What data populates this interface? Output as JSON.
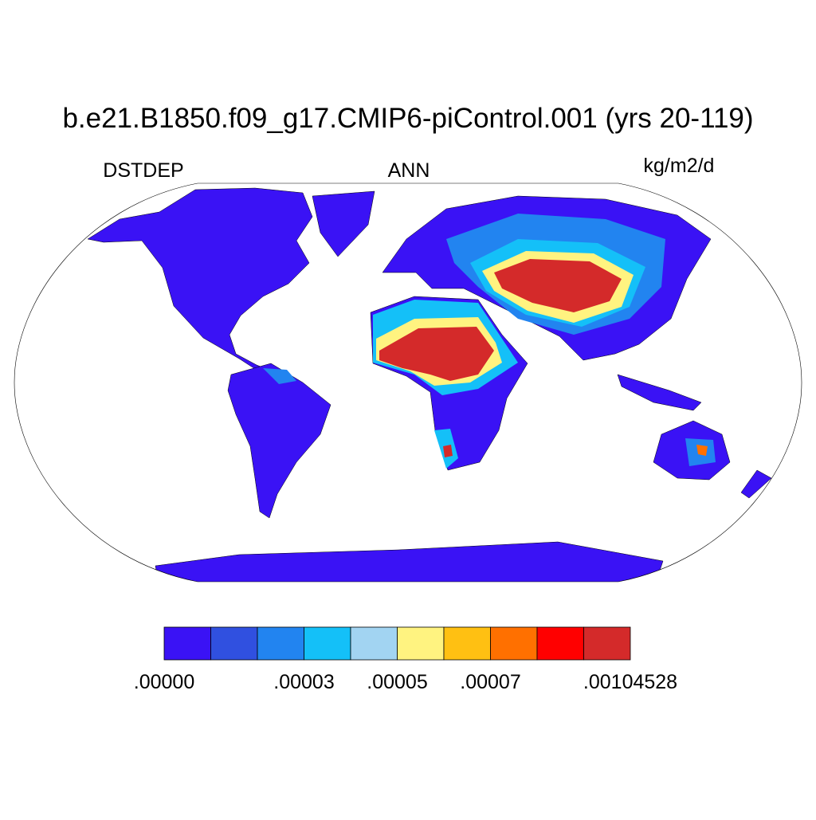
{
  "title": "b.e21.B1850.f09_g17.CMIP6-piControl.001 (yrs 20-119)",
  "left_label": "DSTDEP",
  "center_label": "ANN",
  "units": "kg/m2/d",
  "colorbar": {
    "colors": [
      "#3a12f5",
      "#3050e0",
      "#2284f0",
      "#14c0f8",
      "#a2d4f2",
      "#fff380",
      "#ffc012",
      "#ff7000",
      "#ff0000",
      "#d42a2a"
    ],
    "boundary_labels": [
      ".00000",
      null,
      null,
      ".00003",
      null,
      ".00005",
      null,
      ".00007",
      null,
      null,
      ".00104528"
    ]
  }
}
